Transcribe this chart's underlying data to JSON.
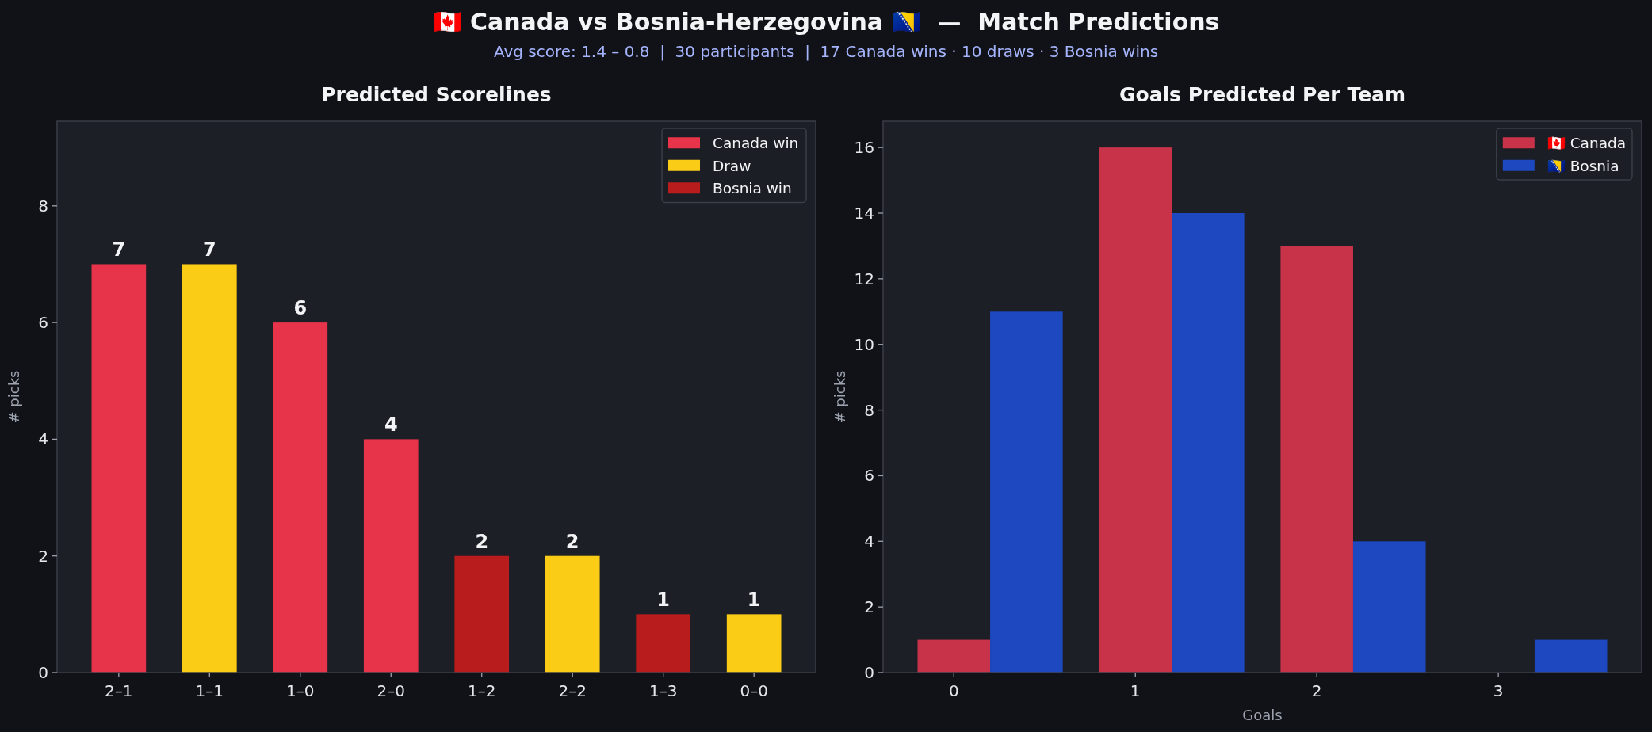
{
  "chart_data": [
    {
      "type": "bar",
      "title": "Predicted Scorelines",
      "ylabel": "# picks",
      "annotations": [
        "🇨🇦 Canada vs Bosnia-Herzegovina 🇧🇦  —  Match Predictions",
        "Avg score: 1.4 – 0.8  |  30 participants  |  17 Canada wins · 10 draws · 3 Bosnia wins"
      ],
      "categories": [
        "2–1",
        "1–1",
        "1–0",
        "2–0",
        "1–2",
        "2–2",
        "1–3",
        "0–0"
      ],
      "stacked": true,
      "series": [
        {
          "name": "Canada win",
          "color": "#e8344a",
          "values": [
            7,
            null,
            6,
            4,
            null,
            null,
            null,
            null
          ]
        },
        {
          "name": "Draw",
          "color": "#facc15",
          "values": [
            null,
            7,
            null,
            null,
            null,
            2,
            null,
            1
          ]
        },
        {
          "name": "Bosnia win",
          "color": "#b91c1c",
          "values": [
            null,
            null,
            null,
            null,
            2,
            null,
            1,
            null
          ]
        }
      ],
      "ylim": [
        0,
        9.45
      ],
      "yticks": [
        0,
        2,
        4,
        6,
        8
      ],
      "data_labels": true,
      "legend": "top right"
    },
    {
      "type": "bar",
      "title": "Goals Predicted Per Team",
      "xlabel": "Goals",
      "ylabel": "# picks",
      "x": [
        0,
        1,
        2,
        3
      ],
      "xlim": [
        -0.39,
        3.79
      ],
      "xticks": [
        0,
        1,
        2,
        3
      ],
      "series": [
        {
          "name": "🇨🇦 Canada",
          "color": "#c8334a",
          "values": [
            1,
            16,
            13,
            0
          ]
        },
        {
          "name": "🇧🇦 Bosnia",
          "color": "#1d48bf",
          "values": [
            11,
            14,
            4,
            1
          ]
        }
      ],
      "ylim": [
        0,
        16.8
      ],
      "yticks": [
        0,
        2,
        4,
        6,
        8,
        10,
        12,
        14,
        16
      ],
      "legend": "top right"
    }
  ]
}
